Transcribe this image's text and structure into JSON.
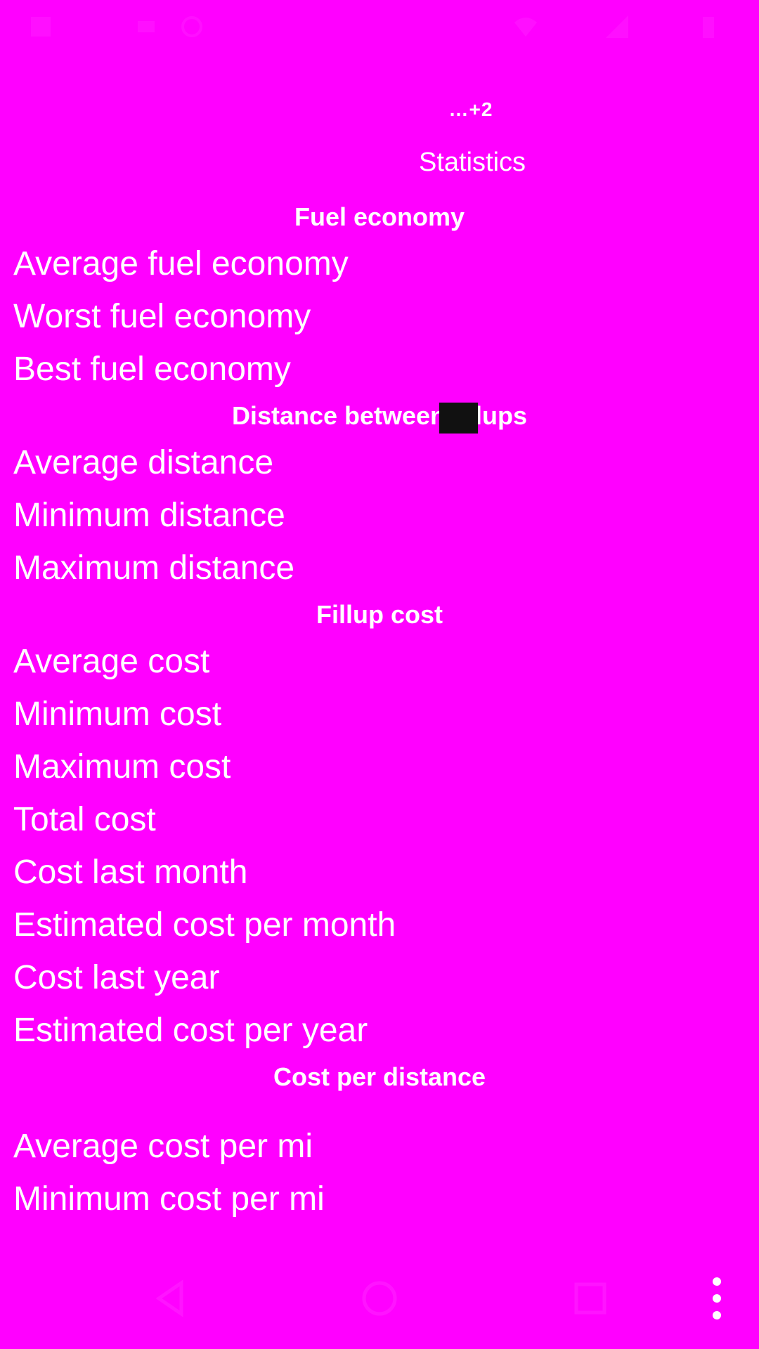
{
  "colors": {
    "background": "#ff00ff",
    "text": "#ffffff"
  },
  "status_bar": {
    "icons": [
      "notification-icon",
      "notification-icon",
      "circle-icon",
      "wifi-icon",
      "signal-icon",
      "battery-icon"
    ]
  },
  "header": {
    "vehicle_name": "…+2",
    "title": "Statistics"
  },
  "sections": {
    "fuel_economy": {
      "title": "Fuel economy",
      "rows": [
        "Average fuel economy",
        "Worst fuel economy",
        "Best fuel economy"
      ]
    },
    "distance": {
      "title": "Distance between fillups",
      "rows": [
        "Average distance",
        "Minimum distance",
        "Maximum distance"
      ]
    },
    "fillup_cost": {
      "title": "Fillup cost",
      "rows": [
        "Average cost",
        "Minimum cost",
        "Maximum cost",
        "Total cost",
        "Cost last month",
        "Estimated cost per month",
        "Cost last year",
        "Estimated cost per year"
      ]
    },
    "cost_per_distance": {
      "title": "Cost per distance",
      "rows": [
        "Average cost per mi",
        "Minimum cost per mi"
      ]
    }
  },
  "nav_bar": {
    "buttons": [
      "back-icon",
      "home-icon",
      "recents-icon",
      "overflow-menu-icon"
    ]
  }
}
